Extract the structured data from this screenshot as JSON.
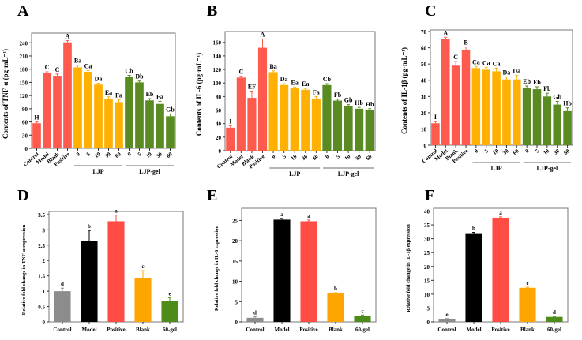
{
  "chart_data": [
    {
      "panel": "A",
      "type": "bar",
      "ylabel": "Contents of TNF-α (pg·mL⁻¹)",
      "ylim": [
        0,
        262
      ],
      "yticks": [
        0,
        30,
        60,
        90,
        120,
        150,
        180,
        210,
        240
      ],
      "categories": [
        "Control",
        "Model",
        "Blank",
        "Positive",
        "0",
        "5",
        "10",
        "30",
        "60",
        "0",
        "5",
        "10",
        "30",
        "60"
      ],
      "values": [
        57,
        171,
        165,
        241,
        184,
        174,
        145,
        113,
        105,
        163,
        150,
        109,
        101,
        73
      ],
      "errors": [
        3,
        3,
        4,
        4,
        5,
        3,
        3,
        4,
        5,
        3,
        3,
        4,
        6,
        5
      ],
      "letters": [
        "H",
        "C",
        "C",
        "A",
        "Ba",
        "Ca",
        "Da",
        "Ea",
        "Fa",
        "Cb",
        "Db",
        "Eb",
        "Fa",
        "Gb"
      ],
      "groups": [
        {
          "label": "LJP",
          "from": 4,
          "to": 8
        },
        {
          "label": "LJP-gel",
          "from": 9,
          "to": 13
        }
      ]
    },
    {
      "panel": "B",
      "type": "bar",
      "ylabel": "Contents of IL-6 (pg·mL⁻¹)",
      "ylim": [
        0,
        176
      ],
      "yticks": [
        0,
        20,
        40,
        60,
        80,
        100,
        120,
        140,
        160
      ],
      "categories": [
        "Control",
        "Model",
        "Blank",
        "Positive",
        "0",
        "5",
        "10",
        "30",
        "60",
        "0",
        "5",
        "10",
        "30",
        "60"
      ],
      "values": [
        34,
        108,
        78,
        152,
        116,
        97,
        92,
        90,
        77,
        97,
        74,
        66,
        62,
        60
      ],
      "errors": [
        3,
        2,
        10,
        13,
        2,
        2,
        2,
        2,
        3,
        2,
        2,
        2,
        2,
        2
      ],
      "letters": [
        "I",
        "C",
        "EF",
        "A",
        "Ba",
        "Da",
        "Ea",
        "Ea",
        "Fa",
        "Cb",
        "Fb",
        "Gb",
        "Hb",
        "Hb"
      ],
      "groups": [
        {
          "label": "LJP",
          "from": 4,
          "to": 8
        },
        {
          "label": "LJP-gel",
          "from": 9,
          "to": 13
        }
      ]
    },
    {
      "panel": "C",
      "type": "bar",
      "ylabel": "Contents of IL-1β (pg·mL⁻¹)",
      "ylim": [
        0,
        71
      ],
      "yticks": [
        0,
        10,
        20,
        30,
        40,
        50,
        60,
        70
      ],
      "categories": [
        "Control",
        "Model",
        "Blank",
        "Positive",
        "0",
        "5",
        "10",
        "30",
        "60",
        "0",
        "5",
        "10",
        "30",
        "60"
      ],
      "values": [
        13.5,
        65.5,
        49,
        58.5,
        47.5,
        46.5,
        45.5,
        40.5,
        40.5,
        35,
        34.5,
        30,
        25,
        21
      ],
      "errors": [
        1,
        1,
        2.5,
        2,
        1,
        1.5,
        2,
        1.5,
        2.5,
        1.5,
        1.5,
        2,
        2,
        2
      ],
      "letters": [
        "I",
        "A",
        "C",
        "B",
        "Ca",
        "Ca",
        "Ca",
        "Da",
        "Da",
        "Eb",
        "Eb",
        "Fb",
        "Gb",
        "Hb"
      ],
      "groups": [
        {
          "label": "LJP",
          "from": 4,
          "to": 8
        },
        {
          "label": "LJP-gel",
          "from": 9,
          "to": 13
        }
      ]
    },
    {
      "panel": "D",
      "type": "bar",
      "ylabel": "Relative fold change in TNF-α expression",
      "ylim": [
        0,
        3.6
      ],
      "yticks": [
        0,
        0.5,
        1.0,
        1.5,
        2.0,
        2.5,
        3.0,
        3.5
      ],
      "categories": [
        "Control",
        "Model",
        "Positive",
        "Blank",
        "60-gel"
      ],
      "values": [
        1.0,
        2.63,
        3.28,
        1.42,
        0.67
      ],
      "errors": [
        0.1,
        0.35,
        0.2,
        0.25,
        0.12
      ],
      "letters": [
        "d",
        "b",
        "a",
        "c",
        "e"
      ],
      "groups": []
    },
    {
      "panel": "E",
      "type": "bar",
      "ylabel": "Relative fold change in IL-6 expression",
      "ylim": [
        0,
        28
      ],
      "yticks": [
        0,
        5,
        10,
        15,
        20,
        25
      ],
      "categories": [
        "Control",
        "Model",
        "Positive",
        "Blank",
        "60-gel"
      ],
      "values": [
        1.0,
        25.2,
        24.8,
        7.0,
        1.5
      ],
      "errors": [
        0.3,
        0.3,
        0.3,
        0.2,
        0.2
      ],
      "letters": [
        "d",
        "a",
        "a",
        "b",
        "c"
      ],
      "groups": []
    },
    {
      "panel": "F",
      "type": "bar",
      "ylabel": "Relative fold change in IL-1β expression",
      "ylim": [
        0,
        41
      ],
      "yticks": [
        0,
        5,
        10,
        15,
        20,
        25,
        30,
        35,
        40
      ],
      "categories": [
        "Control",
        "Model",
        "Positive",
        "Blank",
        "60-gel"
      ],
      "values": [
        1.0,
        32.0,
        37.6,
        12.3,
        1.8
      ],
      "errors": [
        0.2,
        0.3,
        0.3,
        0.2,
        0.2
      ],
      "letters": [
        "e",
        "b",
        "a",
        "c",
        "d"
      ],
      "groups": []
    }
  ],
  "colors": {
    "top": [
      "#ff5a4e",
      "#ff5a4e",
      "#ff5a4e",
      "#ff5a4e",
      "#ffb000",
      "#ffb000",
      "#ffb000",
      "#ffb000",
      "#ffb000",
      "#5a8a22",
      "#5a8a22",
      "#5a8a22",
      "#5a8a22",
      "#5a8a22"
    ],
    "bottom": [
      "#8c8c8c",
      "#000000",
      "#ff4c45",
      "#ffa500",
      "#4e8c1a"
    ]
  }
}
